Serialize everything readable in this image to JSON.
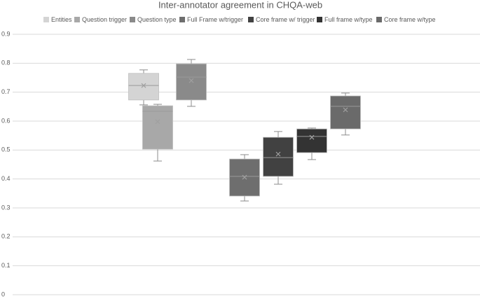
{
  "chart_data": {
    "type": "box",
    "title": "Inter-annotator agreement in CHQA-web",
    "ylim": [
      0,
      0.9
    ],
    "yticks": [
      0,
      0.1,
      0.2,
      0.3,
      0.4,
      0.5,
      0.6,
      0.7,
      0.8,
      0.9
    ],
    "grid": true,
    "legend": "top",
    "series": [
      {
        "name": "Entities",
        "color": "#d4d4d4",
        "min": 0.656,
        "q1": 0.673,
        "median": 0.723,
        "q3": 0.765,
        "max": 0.777,
        "mean": 0.723
      },
      {
        "name": "Question trigger",
        "color": "#a8a8a8",
        "min": 0.462,
        "q1": 0.503,
        "median": 0.634,
        "q3": 0.653,
        "max": 0.658,
        "mean": 0.598
      },
      {
        "name": "Question type",
        "color": "#8a8a8a",
        "min": 0.651,
        "q1": 0.673,
        "median": 0.752,
        "q3": 0.798,
        "max": 0.813,
        "mean": 0.74
      },
      {
        "name": "Full Frame w/trigger",
        "color": "#6e6e6e",
        "min": 0.324,
        "q1": 0.341,
        "median": 0.409,
        "q3": 0.469,
        "max": 0.484,
        "mean": 0.406
      },
      {
        "name": "Core frame w/ trigger",
        "color": "#414141",
        "min": 0.382,
        "q1": 0.409,
        "median": 0.474,
        "q3": 0.544,
        "max": 0.564,
        "mean": 0.486
      },
      {
        "name": "Full frame w/type",
        "color": "#333333",
        "min": 0.467,
        "q1": 0.491,
        "median": 0.547,
        "q3": 0.573,
        "max": 0.576,
        "mean": 0.544
      },
      {
        "name": "Core frame w/type",
        "color": "#6a6a6a",
        "min": 0.552,
        "q1": 0.573,
        "median": 0.651,
        "q3": 0.687,
        "max": 0.697,
        "mean": 0.639
      }
    ]
  }
}
